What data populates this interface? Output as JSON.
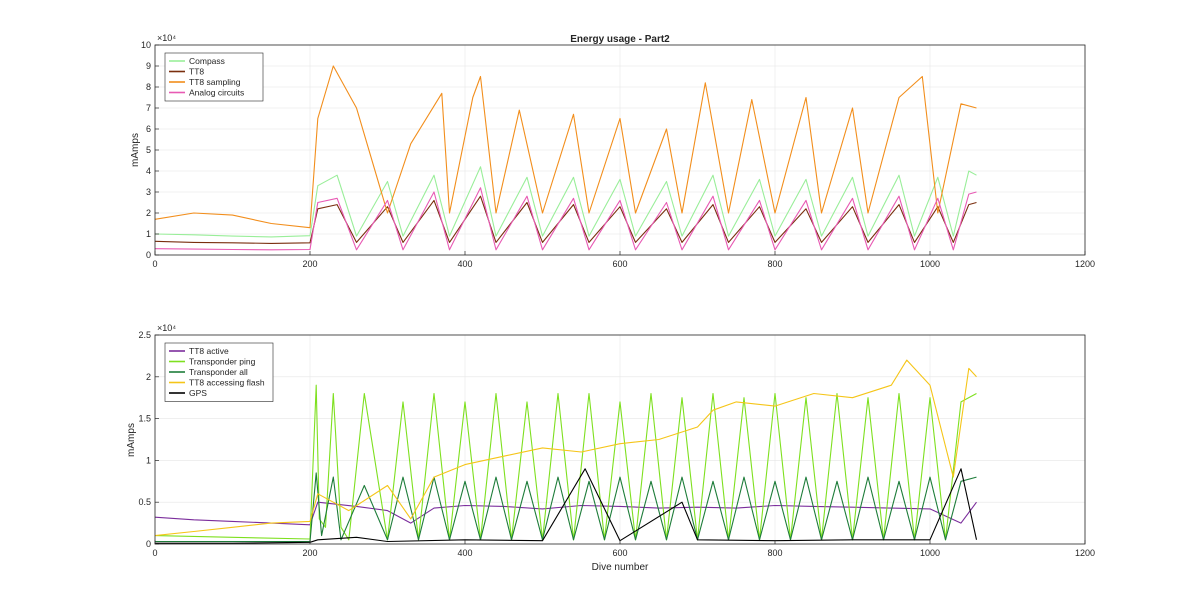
{
  "chart_data": [
    {
      "type": "line",
      "title": "Energy usage - Part2",
      "xlabel": "",
      "ylabel": "mAmps",
      "xlim": [
        0,
        1200
      ],
      "ylim": [
        0,
        100000
      ],
      "y_exponent_label": "×10⁴",
      "x_ticks": [
        0,
        200,
        400,
        600,
        800,
        1000,
        1200
      ],
      "y_ticks": [
        0,
        1,
        2,
        3,
        4,
        5,
        6,
        7,
        8,
        9,
        10
      ],
      "grid": true,
      "legend": "top-left",
      "series_colors": [
        "#99ee99",
        "#7a2e0e",
        "#f28e1c",
        "#e85ab4"
      ],
      "series": [
        {
          "name": "Compass",
          "x": [
            0,
            50,
            100,
            150,
            200,
            210,
            235,
            260,
            300,
            320,
            360,
            380,
            420,
            440,
            480,
            500,
            540,
            560,
            600,
            620,
            660,
            680,
            720,
            740,
            780,
            800,
            840,
            860,
            900,
            920,
            960,
            980,
            1010,
            1030,
            1050,
            1060
          ],
          "y": [
            10000,
            9600,
            9000,
            8600,
            9200,
            33000,
            38000,
            9000,
            35000,
            9000,
            38000,
            9000,
            42000,
            9000,
            37000,
            9000,
            37000,
            9000,
            36000,
            9000,
            35000,
            9000,
            38000,
            9000,
            36000,
            9000,
            36000,
            9000,
            37000,
            9000,
            38000,
            9000,
            37000,
            9000,
            40000,
            38000
          ]
        },
        {
          "name": "TT8",
          "x": [
            0,
            50,
            100,
            150,
            200,
            210,
            235,
            260,
            300,
            320,
            360,
            380,
            420,
            440,
            480,
            500,
            540,
            560,
            600,
            620,
            660,
            680,
            720,
            740,
            780,
            800,
            840,
            860,
            900,
            920,
            960,
            980,
            1010,
            1030,
            1050,
            1060
          ],
          "y": [
            6500,
            6000,
            5800,
            5500,
            5800,
            22000,
            24000,
            6000,
            23000,
            6000,
            26000,
            6000,
            28000,
            6000,
            25000,
            6000,
            24000,
            6000,
            23000,
            6000,
            22000,
            6000,
            24000,
            6000,
            23000,
            6000,
            22000,
            6000,
            23000,
            6000,
            24000,
            6000,
            23000,
            6000,
            24000,
            25000
          ]
        },
        {
          "name": "TT8 sampling",
          "x": [
            0,
            50,
            100,
            150,
            200,
            210,
            230,
            260,
            300,
            330,
            370,
            380,
            410,
            420,
            440,
            470,
            500,
            540,
            560,
            600,
            620,
            660,
            680,
            710,
            740,
            770,
            800,
            840,
            860,
            900,
            920,
            960,
            990,
            1010,
            1040,
            1060
          ],
          "y": [
            17000,
            20000,
            19000,
            15000,
            13000,
            65000,
            90000,
            70000,
            20000,
            53000,
            77000,
            20000,
            75000,
            85000,
            20000,
            69000,
            20000,
            67000,
            20000,
            65000,
            20000,
            60000,
            20000,
            82000,
            20000,
            74000,
            20000,
            75000,
            20000,
            70000,
            20000,
            75000,
            85000,
            20000,
            72000,
            70000
          ]
        },
        {
          "name": "Analog circuits",
          "x": [
            0,
            50,
            100,
            150,
            200,
            210,
            235,
            260,
            300,
            320,
            360,
            380,
            420,
            440,
            480,
            500,
            540,
            560,
            600,
            620,
            660,
            680,
            720,
            740,
            780,
            800,
            840,
            860,
            900,
            920,
            960,
            980,
            1010,
            1030,
            1050,
            1060
          ],
          "y": [
            3000,
            2800,
            2600,
            2500,
            2600,
            25000,
            27000,
            2500,
            26000,
            2500,
            30000,
            2500,
            32000,
            2500,
            28000,
            2500,
            27000,
            2500,
            26000,
            2500,
            25000,
            2500,
            28000,
            2500,
            26000,
            2500,
            26000,
            2500,
            27000,
            2500,
            28000,
            2500,
            27000,
            2500,
            29000,
            30000
          ]
        }
      ]
    },
    {
      "type": "line",
      "title": "",
      "xlabel": "Dive number",
      "ylabel": "mAmps",
      "xlim": [
        0,
        1200
      ],
      "ylim": [
        0,
        25000
      ],
      "y_exponent_label": "×10⁴",
      "x_ticks": [
        0,
        200,
        400,
        600,
        800,
        1000,
        1200
      ],
      "y_ticks": [
        0,
        0.5,
        1,
        1.5,
        2,
        2.5
      ],
      "grid": true,
      "legend": "top-left",
      "series_colors": [
        "#7b2d9c",
        "#7ee01f",
        "#1e7d3a",
        "#f5c518",
        "#000000"
      ],
      "series": [
        {
          "name": "TT8 active",
          "x": [
            0,
            50,
            100,
            150,
            200,
            210,
            260,
            300,
            330,
            360,
            400,
            450,
            500,
            550,
            600,
            650,
            700,
            750,
            800,
            850,
            900,
            950,
            1000,
            1040,
            1060
          ],
          "y": [
            3200,
            2900,
            2700,
            2500,
            2300,
            5000,
            4500,
            4000,
            2500,
            4300,
            4600,
            4500,
            4200,
            4600,
            4500,
            4300,
            4400,
            4300,
            4600,
            4500,
            4400,
            4300,
            4200,
            2500,
            5000
          ]
        },
        {
          "name": "Transponder ping",
          "x": [
            0,
            100,
            200,
            208,
            212,
            220,
            230,
            240,
            250,
            270,
            300,
            320,
            340,
            360,
            380,
            400,
            420,
            440,
            460,
            480,
            500,
            520,
            540,
            560,
            580,
            600,
            620,
            640,
            660,
            680,
            700,
            720,
            740,
            760,
            780,
            800,
            820,
            840,
            860,
            880,
            900,
            920,
            940,
            960,
            980,
            1000,
            1020,
            1040,
            1060
          ],
          "y": [
            1000,
            800,
            600,
            19000,
            3000,
            2000,
            18000,
            2000,
            500,
            18000,
            500,
            17000,
            500,
            18000,
            500,
            17000,
            500,
            18000,
            500,
            17000,
            500,
            18000,
            500,
            18000,
            500,
            17000,
            500,
            18000,
            500,
            17500,
            500,
            18000,
            500,
            17500,
            500,
            18000,
            500,
            17500,
            500,
            18000,
            500,
            17500,
            500,
            18000,
            500,
            17500,
            500,
            17000,
            18000
          ]
        },
        {
          "name": "Transponder all",
          "x": [
            0,
            100,
            200,
            208,
            215,
            230,
            240,
            270,
            300,
            320,
            340,
            360,
            380,
            400,
            420,
            440,
            460,
            480,
            500,
            520,
            540,
            560,
            580,
            600,
            620,
            640,
            660,
            680,
            700,
            720,
            740,
            760,
            780,
            800,
            820,
            840,
            860,
            880,
            900,
            920,
            940,
            960,
            980,
            1000,
            1020,
            1040,
            1060
          ],
          "y": [
            300,
            300,
            300,
            8500,
            1000,
            8000,
            500,
            7000,
            500,
            8000,
            500,
            8000,
            500,
            7500,
            500,
            8000,
            500,
            7500,
            500,
            8000,
            500,
            7500,
            500,
            8000,
            500,
            7500,
            500,
            8000,
            500,
            7500,
            500,
            8000,
            500,
            7500,
            500,
            8000,
            500,
            7500,
            500,
            8000,
            500,
            7500,
            500,
            8000,
            500,
            7500,
            8000
          ]
        },
        {
          "name": "TT8 accessing flash",
          "x": [
            0,
            50,
            100,
            150,
            200,
            210,
            250,
            300,
            330,
            360,
            400,
            450,
            500,
            550,
            600,
            650,
            700,
            720,
            750,
            800,
            850,
            900,
            950,
            970,
            1000,
            1030,
            1050,
            1060
          ],
          "y": [
            1000,
            1500,
            2000,
            2500,
            2700,
            6000,
            4000,
            7000,
            3000,
            8000,
            9500,
            10500,
            11500,
            11000,
            12000,
            12500,
            14000,
            16000,
            17000,
            16500,
            18000,
            17500,
            19000,
            22000,
            19000,
            8000,
            21000,
            20000
          ]
        },
        {
          "name": "GPS",
          "x": [
            0,
            100,
            200,
            210,
            260,
            300,
            400,
            500,
            555,
            600,
            680,
            700,
            800,
            900,
            1000,
            1040,
            1060
          ],
          "y": [
            100,
            100,
            200,
            500,
            800,
            300,
            500,
            400,
            9000,
            400,
            5000,
            500,
            400,
            500,
            500,
            9000,
            500
          ]
        }
      ]
    }
  ]
}
